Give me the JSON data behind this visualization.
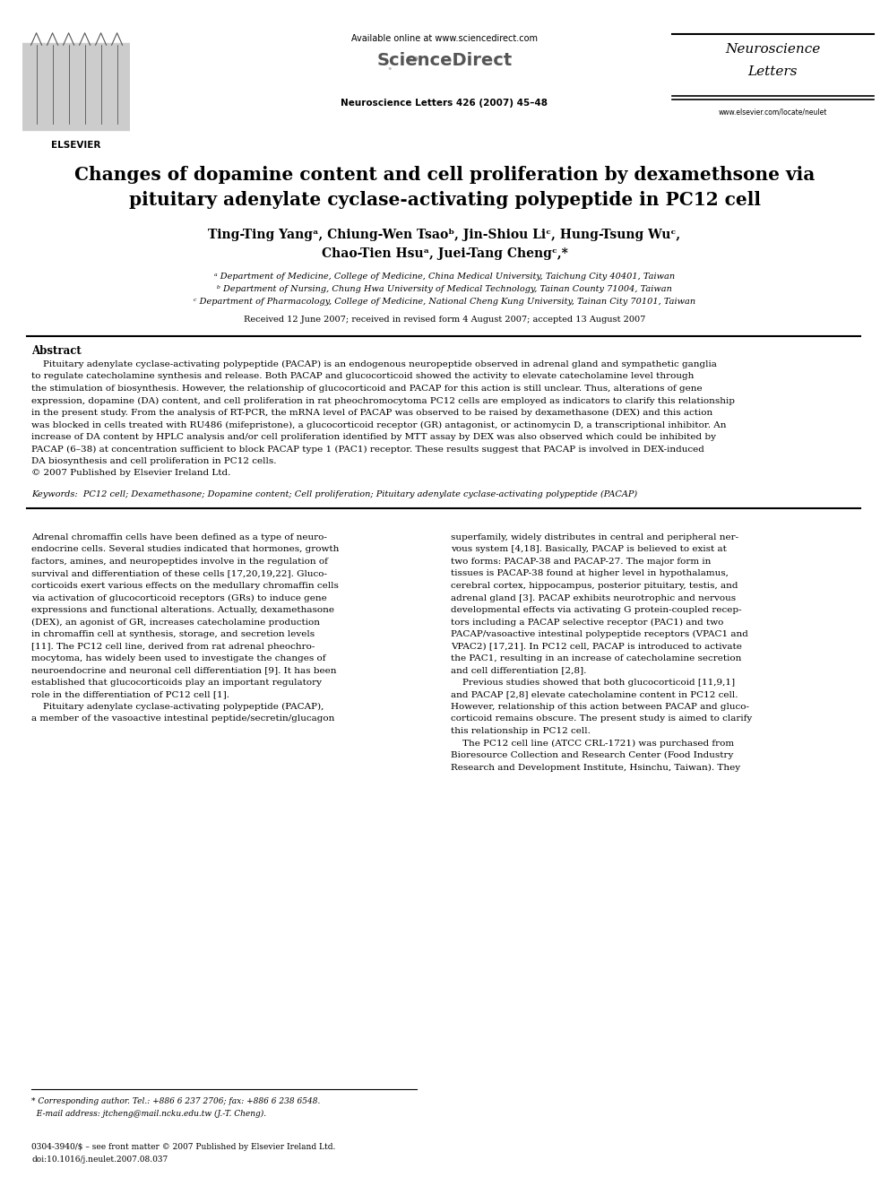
{
  "page_width": 9.92,
  "page_height": 13.23,
  "dpi": 100,
  "background_color": "#ffffff",
  "header": {
    "available_online": "Available online at www.sciencedirect.com",
    "sciencedirect_text": "ScienceDirect",
    "journal_name_line1": "Neuroscience",
    "journal_name_line2": "Letters",
    "journal_citation": "Neuroscience Letters 426 (2007) 45–48",
    "website": "www.elsevier.com/locate/neulet"
  },
  "title_line1": "Changes of dopamine content and cell proliferation by dexamethsone via",
  "title_line2": "pituitary adenylate cyclase-activating polypeptide in PC12 cell",
  "authors_line1": "Ting-Ting Yangᵃ, Chiung-Wen Tsaoᵇ, Jin-Shiou Liᶜ, Hung-Tsung Wuᶜ,",
  "authors_line2": "Chao-Tien Hsuᵃ, Juei-Tang Chengᶜ,*",
  "aff_a": "ᵃ Department of Medicine, College of Medicine, China Medical University, Taichung City 40401, Taiwan",
  "aff_b": "ᵇ Department of Nursing, Chung Hwa University of Medical Technology, Tainan County 71004, Taiwan",
  "aff_c": "ᶜ Department of Pharmacology, College of Medicine, National Cheng Kung University, Tainan City 70101, Taiwan",
  "received_text": "Received 12 June 2007; received in revised form 4 August 2007; accepted 13 August 2007",
  "abstract_title": "Abstract",
  "abstract_lines": [
    "    Pituitary adenylate cyclase-activating polypeptide (PACAP) is an endogenous neuropeptide observed in adrenal gland and sympathetic ganglia",
    "to regulate catecholamine synthesis and release. Both PACAP and glucocorticoid showed the activity to elevate catecholamine level through",
    "the stimulation of biosynthesis. However, the relationship of glucocorticoid and PACAP for this action is still unclear. Thus, alterations of gene",
    "expression, dopamine (DA) content, and cell proliferation in rat pheochromocytoma PC12 cells are employed as indicators to clarify this relationship",
    "in the present study. From the analysis of RT-PCR, the mRNA level of PACAP was observed to be raised by dexamethasone (DEX) and this action",
    "was blocked in cells treated with RU486 (mifepristone), a glucocorticoid receptor (GR) antagonist, or actinomycin D, a transcriptional inhibitor. An",
    "increase of DA content by HPLC analysis and/or cell proliferation identified by MTT assay by DEX was also observed which could be inhibited by",
    "PACAP (6–38) at concentration sufficient to block PACAP type 1 (PAC1) receptor. These results suggest that PACAP is involved in DEX-induced",
    "DA biosynthesis and cell proliferation in PC12 cells.",
    "© 2007 Published by Elsevier Ireland Ltd."
  ],
  "keywords_line": "Keywords:  PC12 cell; Dexamethasone; Dopamine content; Cell proliferation; Pituitary adenylate cyclase-activating polypeptide (PACAP)",
  "left_col_lines": [
    "Adrenal chromaffin cells have been defined as a type of neuro­",
    "endocrine cells. Several studies indicated that hormones, growth",
    "factors, amines, and neuropeptides involve in the regulation of",
    "survival and differentiation of these cells [17,20,19,22]. Gluco­",
    "corticoids exert various effects on the medullary chromaffin cells",
    "via activation of glucocorticoid receptors (GRs) to induce gene",
    "expressions and functional alterations. Actually, dexamethasone",
    "(DEX), an agonist of GR, increases catecholamine production",
    "in chromaffin cell at synthesis, storage, and secretion levels",
    "[11]. The PC12 cell line, derived from rat adrenal pheochro­",
    "mocytoma, has widely been used to investigate the changes of",
    "neuroendocrine and neuronal cell differentiation [9]. It has been",
    "established that glucocorticoids play an important regulatory",
    "role in the differentiation of PC12 cell [1].",
    "    Pituitary adenylate cyclase-activating polypeptide (PACAP),",
    "a member of the vasoactive intestinal peptide/secretin/glucagon"
  ],
  "right_col_lines": [
    "superfamily, widely distributes in central and peripheral ner­",
    "vous system [4,18]. Basically, PACAP is believed to exist at",
    "two forms: PACAP-38 and PACAP-27. The major form in",
    "tissues is PACAP-38 found at higher level in hypothalamus,",
    "cerebral cortex, hippocampus, posterior pituitary, testis, and",
    "adrenal gland [3]. PACAP exhibits neurotrophic and nervous",
    "developmental effects via activating G protein-coupled recep­",
    "tors including a PACAP selective receptor (PAC1) and two",
    "PACAP/vasoactive intestinal polypeptide receptors (VPAC1 and",
    "VPAC2) [17,21]. In PC12 cell, PACAP is introduced to activate",
    "the PAC1, resulting in an increase of catecholamine secretion",
    "and cell differentiation [2,8].",
    "    Previous studies showed that both glucocorticoid [11,9,1]",
    "and PACAP [2,8] elevate catecholamine content in PC12 cell.",
    "However, relationship of this action between PACAP and gluco­",
    "corticoid remains obscure. The present study is aimed to clarify",
    "this relationship in PC12 cell.",
    "    The PC12 cell line (ATCC CRL-1721) was purchased from",
    "Bioresource Collection and Research Center (Food Industry",
    "Research and Development Institute, Hsinchu, Taiwan). They"
  ],
  "footnote_line1": "* Corresponding author. Tel.: +886 6 237 2706; fax: +886 6 238 6548.",
  "footnote_line2": "  E-mail address: jtcheng@mail.ncku.edu.tw (J.-T. Cheng).",
  "issn_line1": "0304-3940/$ – see front matter © 2007 Published by Elsevier Ireland Ltd.",
  "issn_line2": "doi:10.1016/j.neulet.2007.08.037"
}
